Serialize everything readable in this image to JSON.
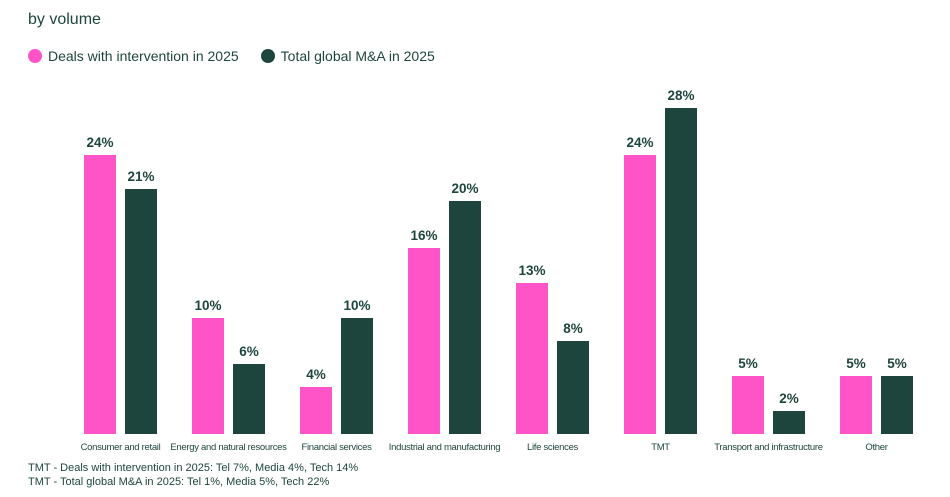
{
  "title": "by volume",
  "colors": {
    "pink": "#FF54C7",
    "dark_green": "#1E453D",
    "text": "#1E453D",
    "background": "#FFFFFF"
  },
  "legend": [
    {
      "label": "Deals with intervention in 2025",
      "color": "#FF54C7"
    },
    {
      "label": "Total global M&A in 2025",
      "color": "#1E453D"
    }
  ],
  "chart_data": {
    "type": "bar",
    "title": "by volume",
    "categories": [
      "Consumer and retail",
      "Energy and natural resources",
      "Financial services",
      "Industrial and manufacturing",
      "Life sciences",
      "TMT",
      "Transport and infrastructure",
      "Other"
    ],
    "series": [
      {
        "name": "Deals with intervention in 2025",
        "color": "#FF54C7",
        "values": [
          24,
          10,
          4,
          16,
          13,
          24,
          5,
          5
        ]
      },
      {
        "name": "Total global M&A in 2025",
        "color": "#1E453D",
        "values": [
          21,
          6,
          10,
          20,
          8,
          28,
          2,
          5
        ]
      }
    ],
    "value_suffix": "%",
    "xlabel": "",
    "ylabel": "",
    "ylim": [
      0,
      28
    ],
    "grid": false,
    "data_labels": true,
    "legend_position": "top-left"
  },
  "footnotes": [
    "TMT - Deals with intervention in 2025: Tel 7%, Media 4%, Tech 14%",
    "TMT - Total global M&A in 2025: Tel 1%, Media 5%, Tech 22%"
  ]
}
